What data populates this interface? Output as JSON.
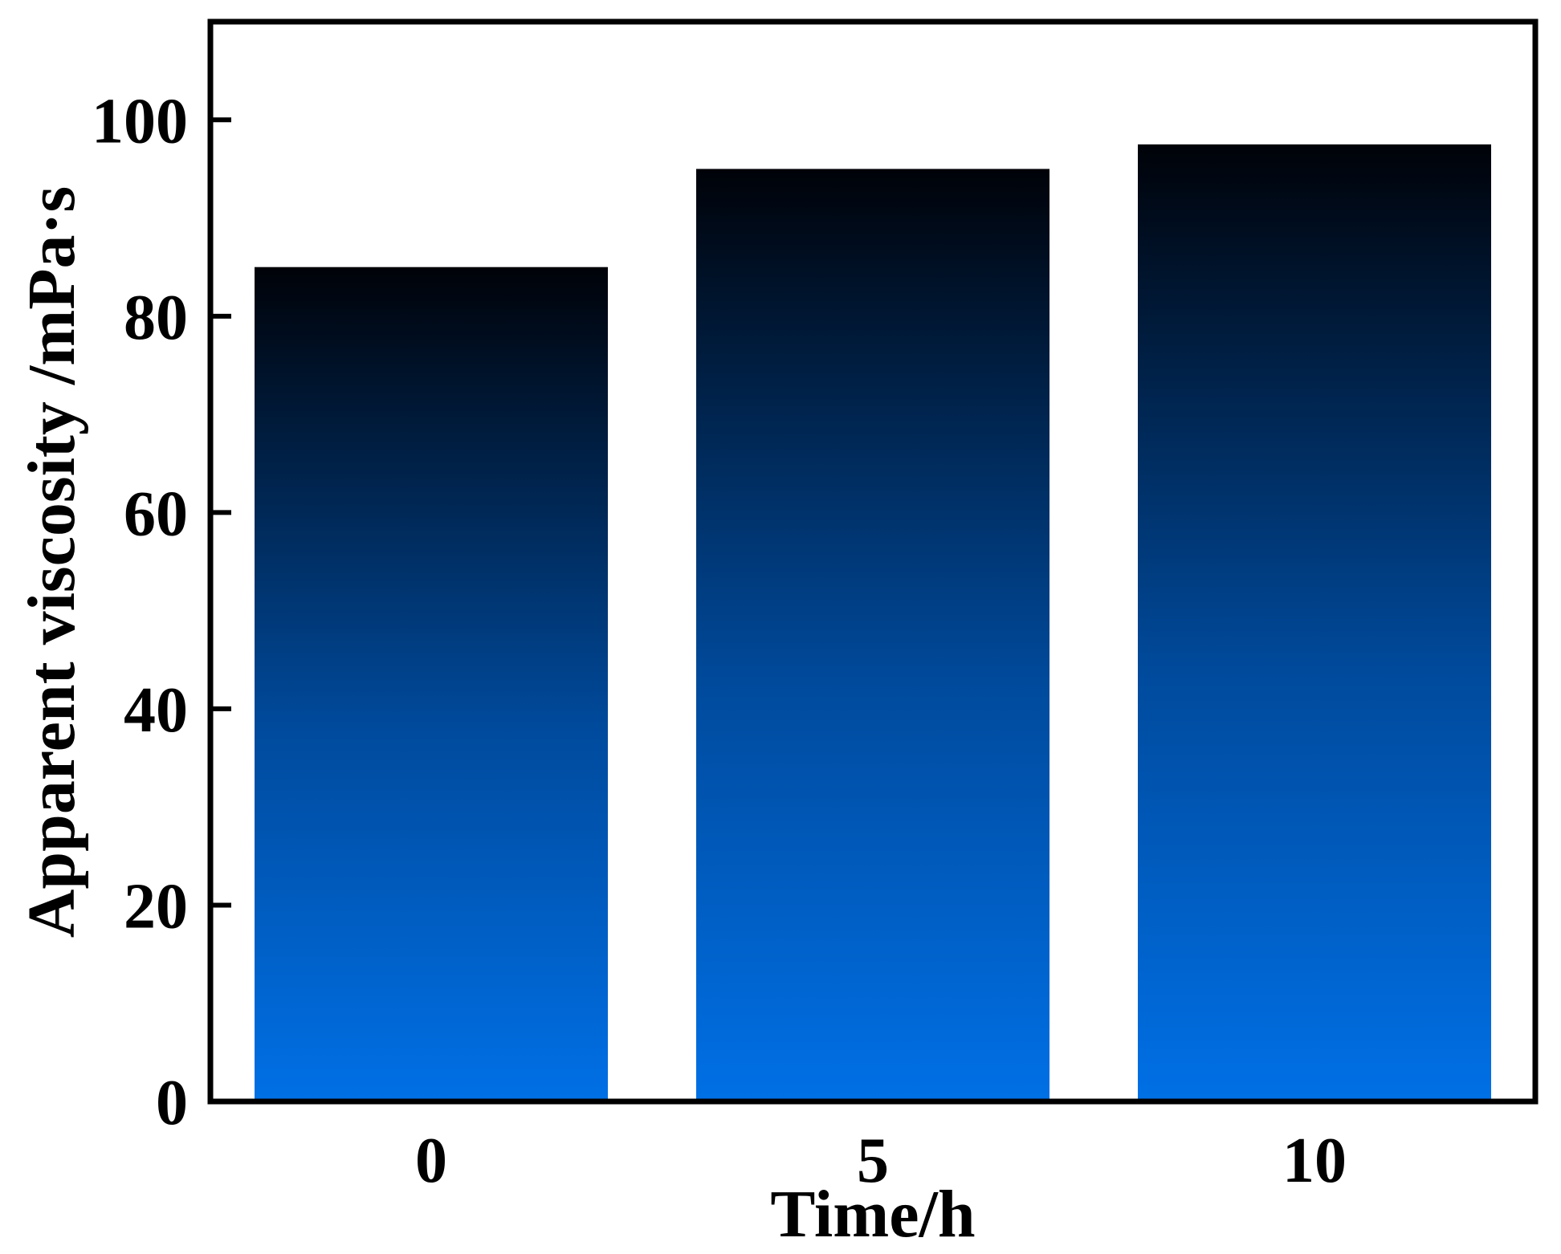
{
  "chart_data": {
    "type": "bar",
    "title": "",
    "xlabel": "Time/h",
    "ylabel": "Apparent viscosity /mPa·s",
    "categories": [
      "0",
      "5",
      "10"
    ],
    "values": [
      85,
      95,
      97.5
    ],
    "ylim": [
      0,
      110
    ],
    "yticks": [
      0,
      20,
      40,
      60,
      80,
      100
    ],
    "grid": false,
    "legend": "none",
    "bar_gradient": {
      "top": "#000208",
      "bottom": "#0070e6"
    },
    "axis_color": "#000000"
  }
}
